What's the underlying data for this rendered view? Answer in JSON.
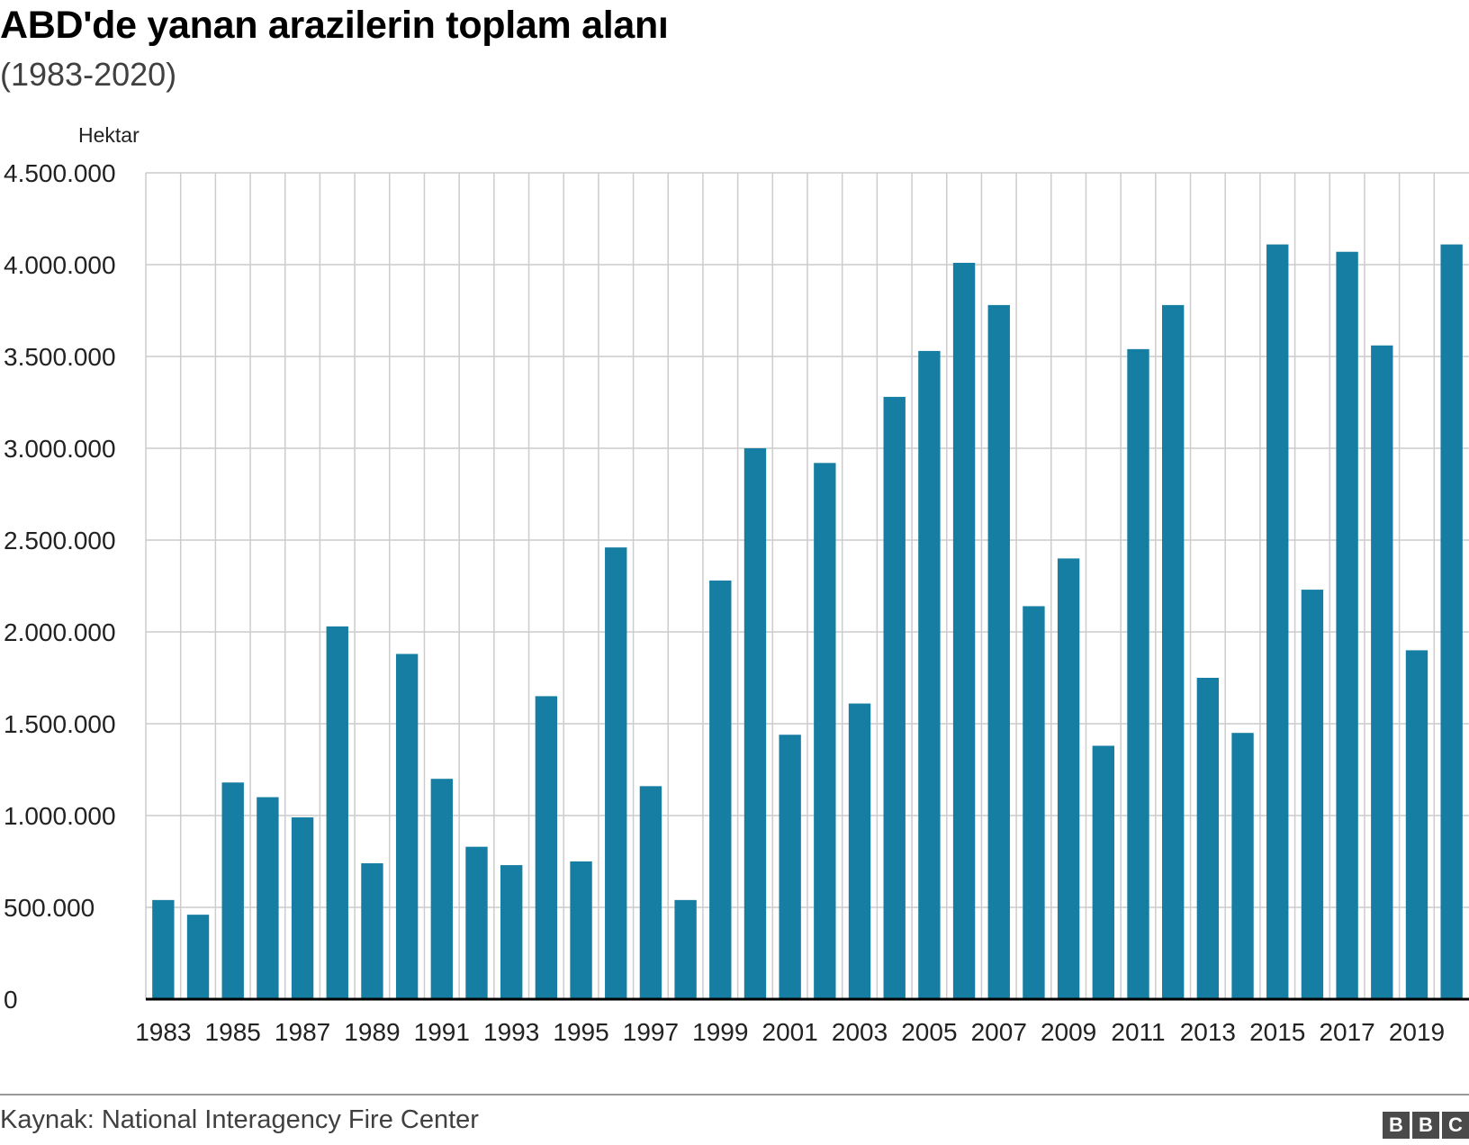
{
  "header": {
    "title": "ABD'de yanan arazilerin toplam alanı",
    "subtitle": "(1983-2020)"
  },
  "footer": {
    "source": "Kaynak: National Interagency Fire Center",
    "logo_letters": [
      "B",
      "B",
      "C"
    ]
  },
  "colors": {
    "bar": "#167ea2",
    "grid": "#cccccc",
    "axis": "#000000"
  },
  "chart_data": {
    "type": "bar",
    "ylabel": "Hektar",
    "ylim": [
      0,
      4500000
    ],
    "yticks": [
      0,
      500000,
      1000000,
      1500000,
      2000000,
      2500000,
      3000000,
      3500000,
      4000000,
      4500000
    ],
    "ytick_labels": [
      "0",
      "500.000",
      "1.000.000",
      "1.500.000",
      "2.000.000",
      "2.500.000",
      "3.000.000",
      "3.500.000",
      "4.000.000",
      "4.500.000"
    ],
    "grid": true,
    "categories": [
      "1983",
      "1984",
      "1985",
      "1986",
      "1987",
      "1988",
      "1989",
      "1990",
      "1991",
      "1992",
      "1993",
      "1994",
      "1995",
      "1996",
      "1997",
      "1998",
      "1999",
      "2000",
      "2001",
      "2002",
      "2003",
      "2004",
      "2005",
      "2006",
      "2007",
      "2008",
      "2009",
      "2010",
      "2011",
      "2012",
      "2013",
      "2014",
      "2015",
      "2016",
      "2017",
      "2018",
      "2019",
      "2020"
    ],
    "xtick_labels": [
      "1983",
      "1985",
      "1987",
      "1989",
      "1991",
      "1993",
      "1995",
      "1997",
      "1999",
      "2001",
      "2003",
      "2005",
      "2007",
      "2009",
      "2011",
      "2013",
      "2015",
      "2017",
      "2019"
    ],
    "values": [
      540000,
      460000,
      1180000,
      1100000,
      990000,
      2030000,
      740000,
      1880000,
      1200000,
      830000,
      730000,
      1650000,
      750000,
      2460000,
      1160000,
      540000,
      2280000,
      3000000,
      1440000,
      2920000,
      1610000,
      3280000,
      3530000,
      4010000,
      3780000,
      2140000,
      2400000,
      1380000,
      3540000,
      3780000,
      1750000,
      1450000,
      4110000,
      2230000,
      4070000,
      3560000,
      1900000,
      4110000
    ]
  }
}
